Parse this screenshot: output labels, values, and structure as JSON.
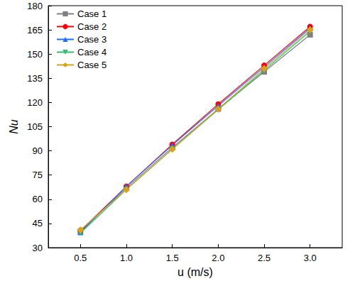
{
  "chart_data": {
    "type": "line",
    "x_label": "u (m/s)",
    "y_label": "Nu",
    "x": [
      0.5,
      1.0,
      1.5,
      2.0,
      2.5,
      3.0
    ],
    "xlim": [
      0.15,
      3.35
    ],
    "xticks": [
      {
        "value": 0.5,
        "label": "0.5"
      },
      {
        "value": 1.0,
        "label": "1.0"
      },
      {
        "value": 1.5,
        "label": "1.5"
      },
      {
        "value": 2.0,
        "label": "2.0"
      },
      {
        "value": 2.5,
        "label": "2.5"
      },
      {
        "value": 3.0,
        "label": "3.0"
      }
    ],
    "ylim": [
      30,
      180
    ],
    "yticks": [
      30,
      45,
      60,
      75,
      90,
      105,
      120,
      135,
      150,
      165,
      180
    ],
    "grid": false,
    "legend": "upper left",
    "series": [
      {
        "name": "Case 1",
        "color": "#808080",
        "marker": "square",
        "values": [
          40,
          67,
          92,
          116,
          139,
          162
        ]
      },
      {
        "name": "Case 2",
        "color": "#ff0000",
        "marker": "circle",
        "values": [
          40.5,
          68,
          94,
          119,
          143,
          167
        ]
      },
      {
        "name": "Case 3",
        "color": "#1e6fff",
        "marker": "triangle",
        "values": [
          39.5,
          68,
          93.5,
          118,
          142,
          166
        ]
      },
      {
        "name": "Case 4",
        "color": "#2fbf71",
        "marker": "triangle-down",
        "values": [
          39,
          66,
          91,
          115.5,
          140,
          164
        ]
      },
      {
        "name": "Case 5",
        "color": "#d6a31a",
        "marker": "diamond",
        "values": [
          41,
          66,
          91,
          116,
          141,
          165
        ]
      }
    ]
  }
}
